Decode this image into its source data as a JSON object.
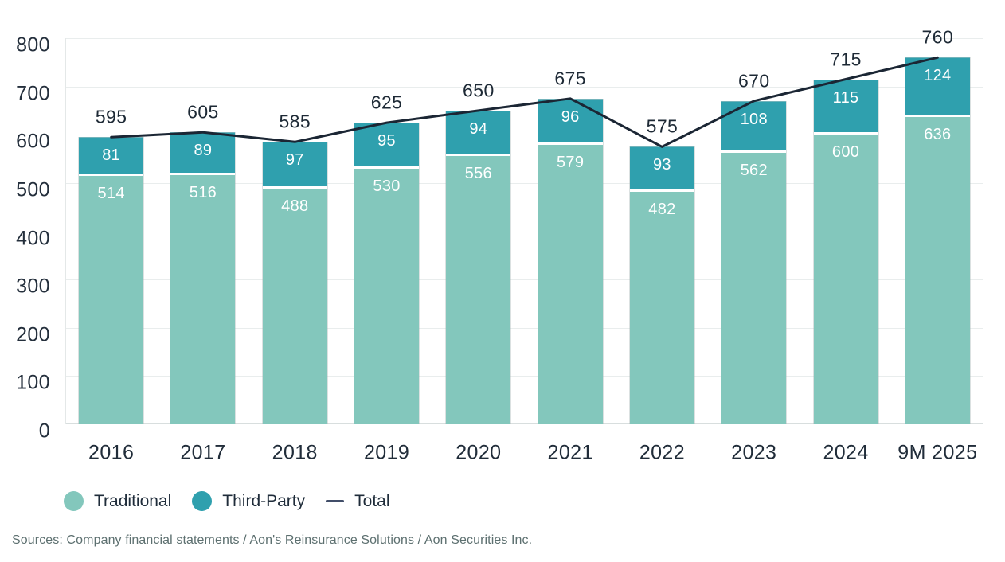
{
  "chart_data": {
    "type": "bar",
    "stacked": true,
    "title": "",
    "xlabel": "",
    "ylabel": "",
    "categories": [
      "2016",
      "2017",
      "2018",
      "2019",
      "2020",
      "2021",
      "2022",
      "2023",
      "2024",
      "9M 2025"
    ],
    "series": [
      {
        "name": "Traditional",
        "color": "#83c7bc",
        "values": [
          514,
          516,
          488,
          530,
          556,
          579,
          482,
          562,
          600,
          636
        ]
      },
      {
        "name": "Third-Party",
        "color": "#2fa0ae",
        "values": [
          81,
          89,
          97,
          95,
          94,
          96,
          93,
          108,
          115,
          124
        ]
      }
    ],
    "line": {
      "name": "Total",
      "color": "#1b2634",
      "swatch_color": "#414e69",
      "values": [
        595,
        605,
        585,
        625,
        650,
        675,
        575,
        670,
        715,
        760
      ]
    },
    "ylim": [
      0,
      800
    ],
    "yticks": [
      0,
      100,
      200,
      300,
      400,
      500,
      600,
      700,
      800
    ],
    "grid": "horizontal",
    "legend_position": "bottom-left",
    "bar_label_color": "#ffffff"
  },
  "footer": {
    "sources": "Sources: Company financial statements / Aon's Reinsurance Solutions / Aon Securities Inc."
  }
}
